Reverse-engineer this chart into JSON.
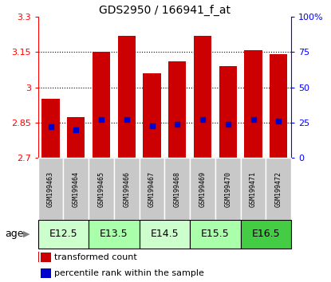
{
  "title": "GDS2950 / 166941_f_at",
  "samples": [
    "GSM199463",
    "GSM199464",
    "GSM199465",
    "GSM199466",
    "GSM199467",
    "GSM199468",
    "GSM199469",
    "GSM199470",
    "GSM199471",
    "GSM199472"
  ],
  "bar_values": [
    2.95,
    2.875,
    3.15,
    3.22,
    3.06,
    3.11,
    3.22,
    3.09,
    3.16,
    3.14
  ],
  "bar_bottom": 2.7,
  "pct_percentages": [
    22,
    20,
    27,
    27,
    23,
    24,
    27,
    24,
    27,
    26
  ],
  "age_groups": [
    {
      "label": "E12.5",
      "start": 0,
      "end": 1,
      "color": "#ccffcc"
    },
    {
      "label": "E13.5",
      "start": 2,
      "end": 3,
      "color": "#aaffaa"
    },
    {
      "label": "E14.5",
      "start": 4,
      "end": 5,
      "color": "#ccffcc"
    },
    {
      "label": "E15.5",
      "start": 6,
      "end": 7,
      "color": "#aaffaa"
    },
    {
      "label": "E16.5",
      "start": 8,
      "end": 9,
      "color": "#44cc44"
    }
  ],
  "ylim_left": [
    2.7,
    3.3
  ],
  "ylim_right": [
    0,
    100
  ],
  "yticks_left": [
    2.7,
    2.85,
    3.0,
    3.15,
    3.3
  ],
  "yticks_left_labels": [
    "2.7",
    "2.85",
    "3",
    "3.15",
    "3.3"
  ],
  "yticks_right": [
    0,
    25,
    50,
    75,
    100
  ],
  "yticks_right_labels": [
    "0",
    "25",
    "50",
    "75",
    "100%"
  ],
  "bar_color": "#cc0000",
  "percentile_color": "#0000cc",
  "sample_bg_color": "#c8c8c8",
  "bar_width": 0.7,
  "dotted_lines": [
    2.85,
    3.0,
    3.15
  ],
  "title_fontsize": 10,
  "tick_fontsize": 8,
  "sample_fontsize": 6,
  "age_fontsize": 9,
  "legend_fontsize": 8
}
